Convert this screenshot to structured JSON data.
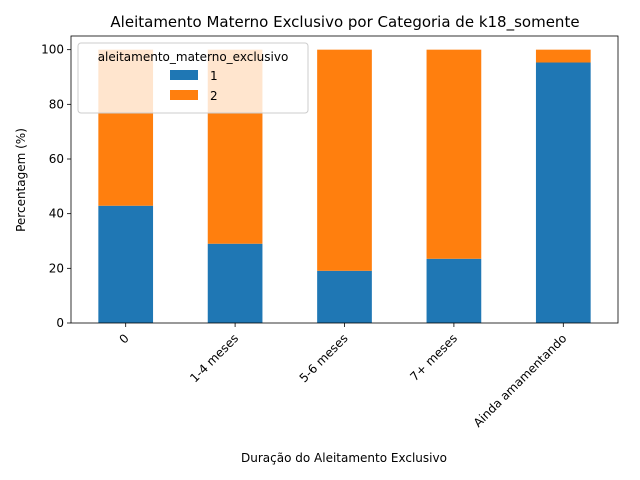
{
  "chart_data": {
    "type": "bar",
    "stacked": true,
    "title": "Aleitamento Materno Exclusivo por Categoria de k18_somente",
    "xlabel": "Duração do Aleitamento Exclusivo",
    "ylabel": "Percentagem (%)",
    "categories": [
      "0",
      "1-4 meses",
      "5-6 meses",
      "7+ meses",
      "Ainda amamentando"
    ],
    "ylim": [
      0,
      105
    ],
    "yticks": [
      "0",
      "20",
      "40",
      "60",
      "80",
      "100"
    ],
    "legend": {
      "title": "aleitamento_materno_exclusivo",
      "placement": "top-left"
    },
    "grid": false,
    "series": [
      {
        "name": "1",
        "color": "#1f77b4",
        "values": [
          42.9,
          29.0,
          19.1,
          23.5,
          95.3
        ]
      },
      {
        "name": "2",
        "color": "#ff7f0e",
        "values": [
          57.1,
          71.0,
          80.9,
          76.5,
          4.7
        ]
      }
    ]
  }
}
